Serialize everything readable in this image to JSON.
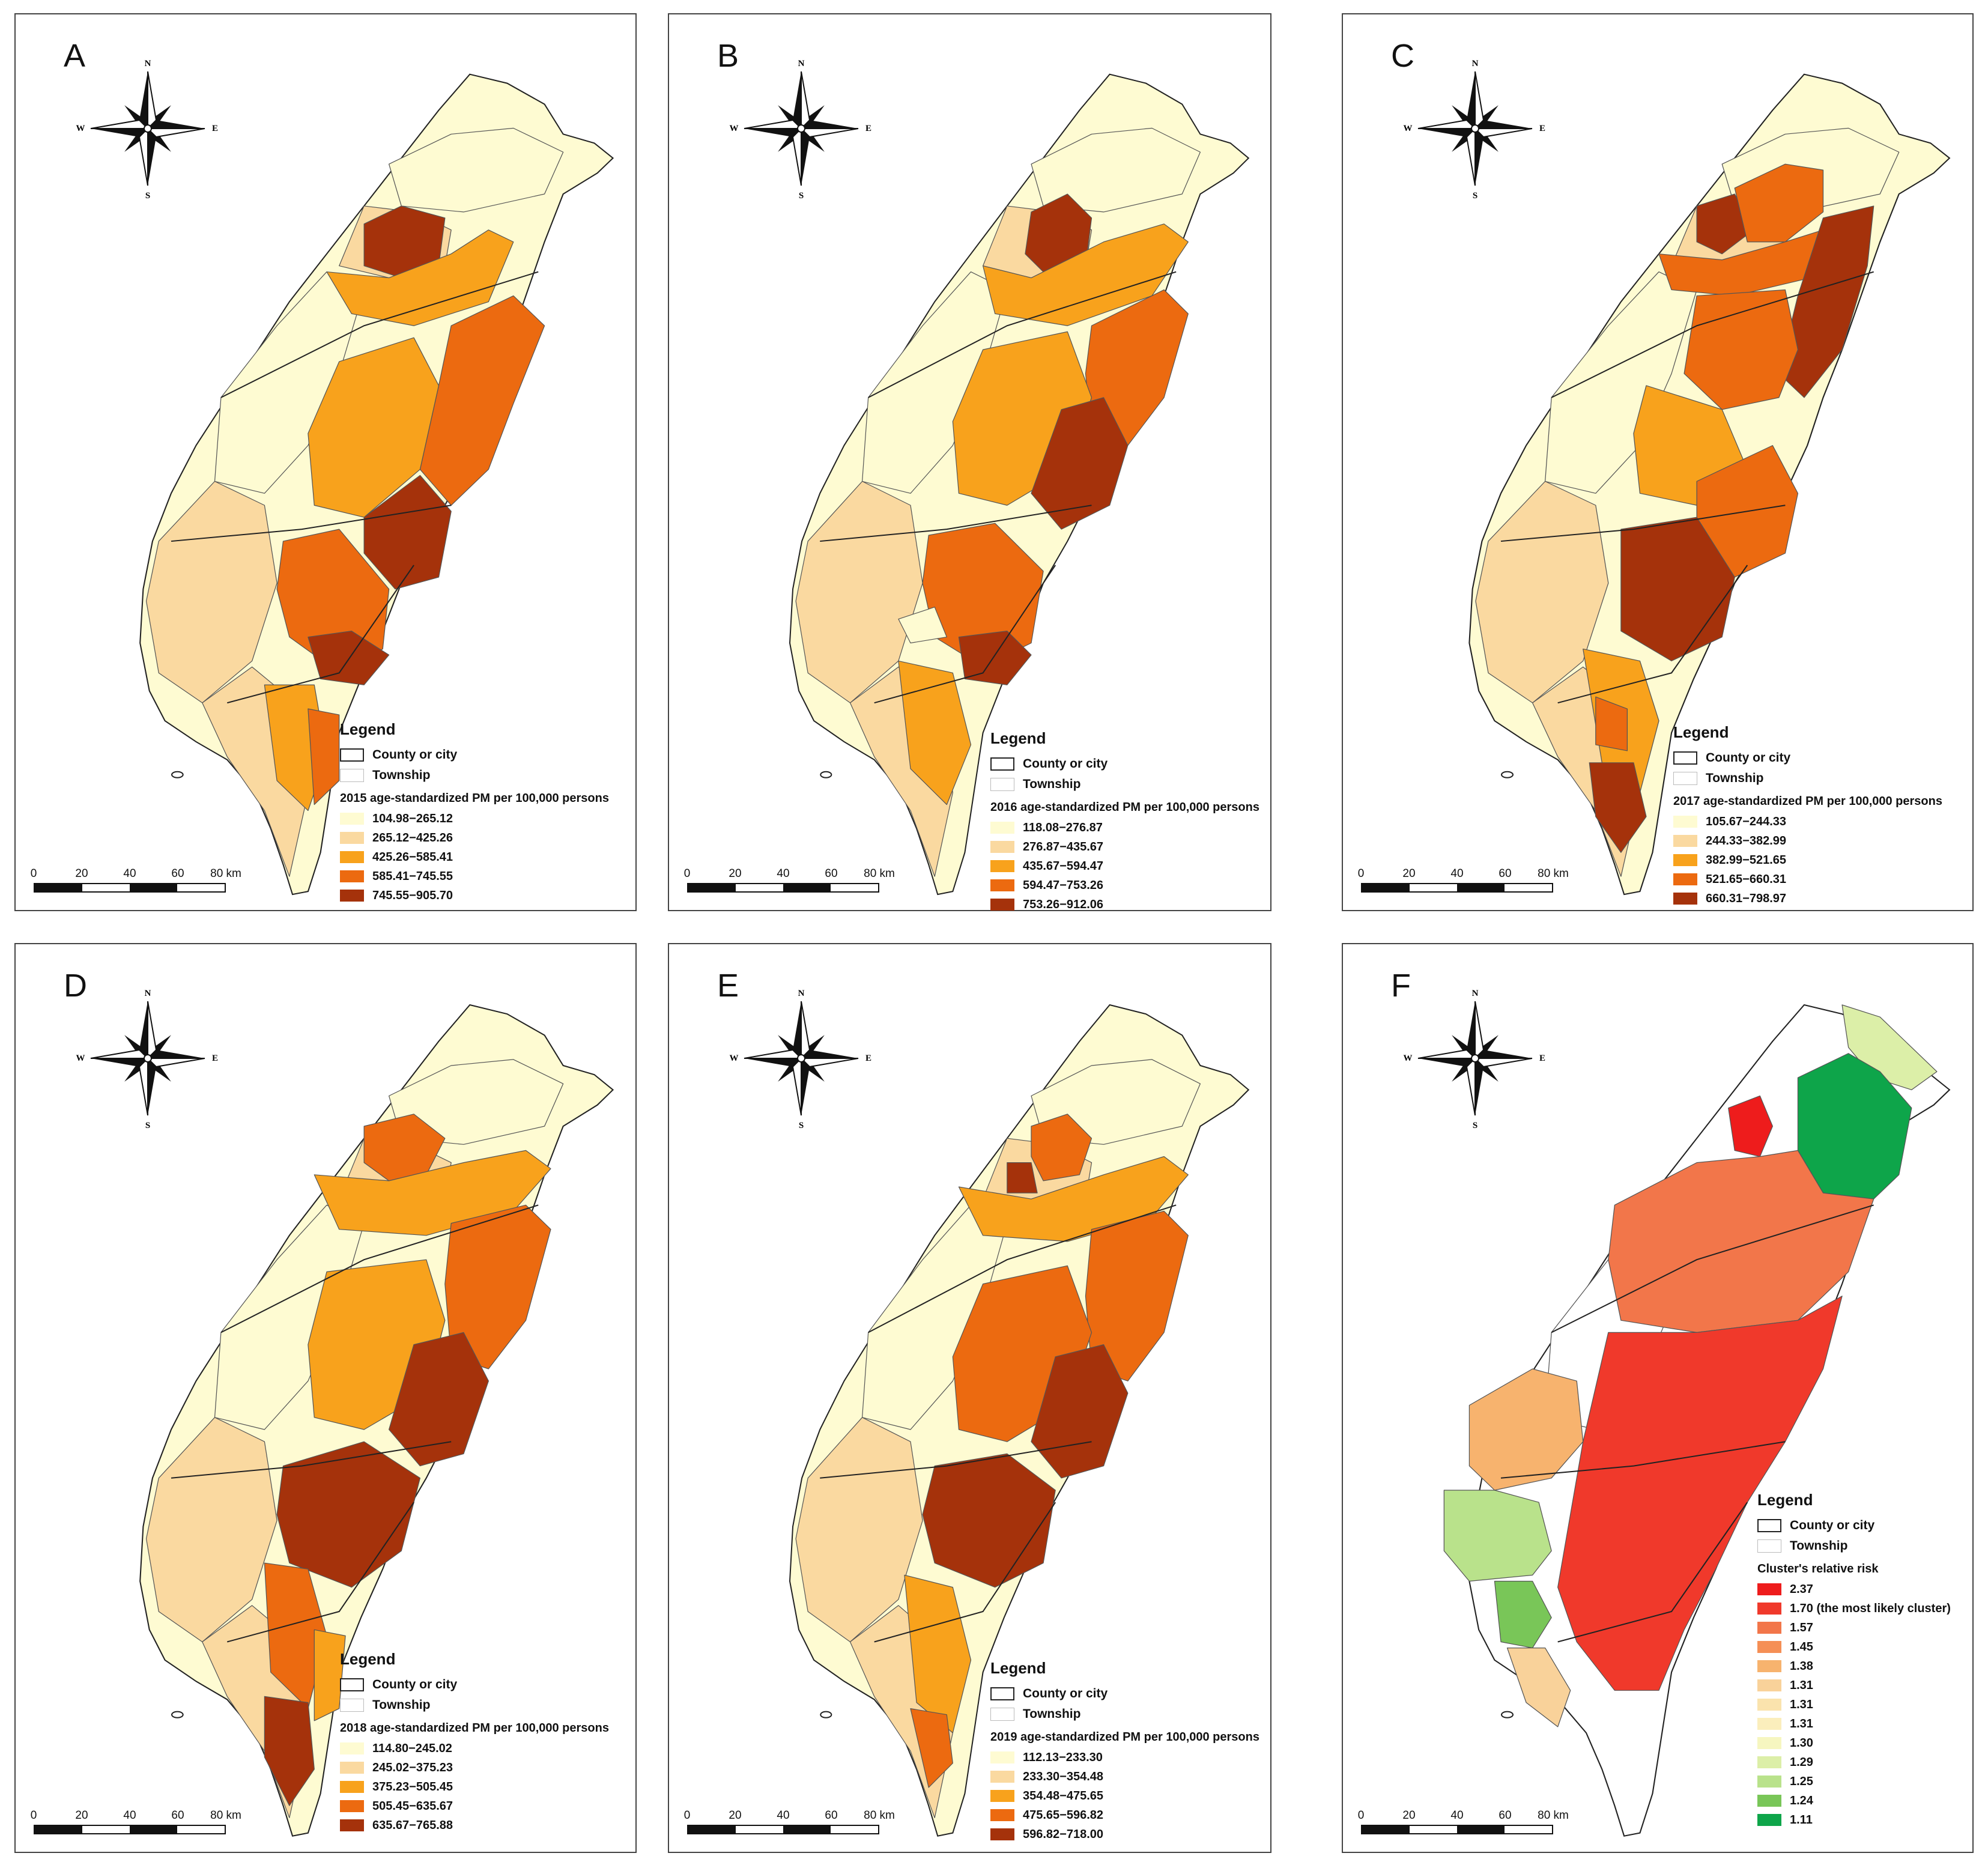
{
  "compass": {
    "n": "N",
    "s": "S",
    "e": "E",
    "w": "W"
  },
  "legend_common": {
    "title": "Legend",
    "county_label": "County or city",
    "township_label": "Township"
  },
  "scale": {
    "ticks": [
      "0",
      "20",
      "40",
      "60",
      "80 km"
    ]
  },
  "panels": [
    {
      "letter": "A",
      "legend_subtitle": "2015 age-standardized PM per 100,000 persons",
      "classes": [
        {
          "label": "104.98−265.12",
          "color": "#fefbd2"
        },
        {
          "label": "265.12−425.26",
          "color": "#fad9a0"
        },
        {
          "label": "425.26−585.41",
          "color": "#f8a21c"
        },
        {
          "label": "585.41−745.55",
          "color": "#ec6a10"
        },
        {
          "label": "745.55−905.70",
          "color": "#a5320b"
        }
      ]
    },
    {
      "letter": "B",
      "legend_subtitle": "2016 age-standardized PM per 100,000 persons",
      "classes": [
        {
          "label": "118.08−276.87",
          "color": "#fefbd2"
        },
        {
          "label": "276.87−435.67",
          "color": "#fad9a0"
        },
        {
          "label": "435.67−594.47",
          "color": "#f8a21c"
        },
        {
          "label": "594.47−753.26",
          "color": "#ec6a10"
        },
        {
          "label": "753.26−912.06",
          "color": "#a5320b"
        }
      ]
    },
    {
      "letter": "C",
      "legend_subtitle": "2017 age-standardized PM per 100,000 persons",
      "classes": [
        {
          "label": "105.67−244.33",
          "color": "#fefbd2"
        },
        {
          "label": "244.33−382.99",
          "color": "#fad9a0"
        },
        {
          "label": "382.99−521.65",
          "color": "#f8a21c"
        },
        {
          "label": "521.65−660.31",
          "color": "#ec6a10"
        },
        {
          "label": "660.31−798.97",
          "color": "#a5320b"
        }
      ]
    },
    {
      "letter": "D",
      "legend_subtitle": "2018 age-standardized PM per 100,000 persons",
      "classes": [
        {
          "label": "114.80−245.02",
          "color": "#fefbd2"
        },
        {
          "label": "245.02−375.23",
          "color": "#fad9a0"
        },
        {
          "label": "375.23−505.45",
          "color": "#f8a21c"
        },
        {
          "label": "505.45−635.67",
          "color": "#ec6a10"
        },
        {
          "label": "635.67−765.88",
          "color": "#a5320b"
        }
      ]
    },
    {
      "letter": "E",
      "legend_subtitle": "2019 age-standardized PM per 100,000 persons",
      "classes": [
        {
          "label": "112.13−233.30",
          "color": "#fefbd2"
        },
        {
          "label": "233.30−354.48",
          "color": "#fad9a0"
        },
        {
          "label": "354.48−475.65",
          "color": "#f8a21c"
        },
        {
          "label": "475.65−596.82",
          "color": "#ec6a10"
        },
        {
          "label": "596.82−718.00",
          "color": "#a5320b"
        }
      ]
    },
    {
      "letter": "F",
      "legend_subtitle": "Cluster's relative risk",
      "classes": [
        {
          "label": "2.37",
          "color": "#ee1c1c"
        },
        {
          "label": "1.70 (the most likely cluster)",
          "color": "#f0392b"
        },
        {
          "label": "1.57",
          "color": "#f2764a"
        },
        {
          "label": "1.45",
          "color": "#f58f55"
        },
        {
          "label": "1.38",
          "color": "#f7b36e"
        },
        {
          "label": "1.31",
          "color": "#f9d29a"
        },
        {
          "label": "1.31",
          "color": "#fae3ad"
        },
        {
          "label": "1.31",
          "color": "#fbeebc"
        },
        {
          "label": "1.30",
          "color": "#f6f6c0"
        },
        {
          "label": "1.29",
          "color": "#dcefa8"
        },
        {
          "label": "1.25",
          "color": "#b9e28b"
        },
        {
          "label": "1.24",
          "color": "#79c658"
        },
        {
          "label": "1.11",
          "color": "#0ea54a"
        }
      ]
    }
  ]
}
